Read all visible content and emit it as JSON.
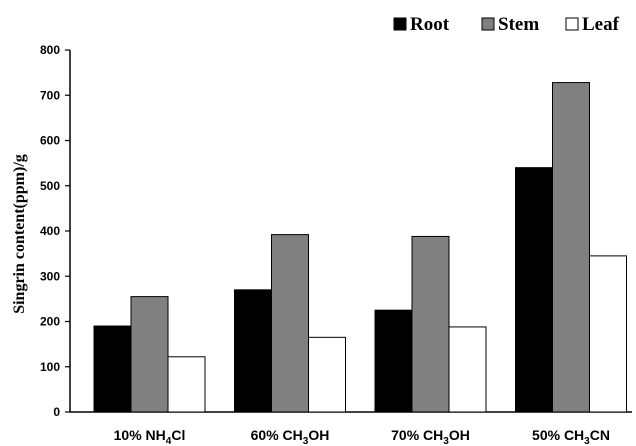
{
  "chart_data": {
    "type": "bar",
    "categories": [
      {
        "text": "10% NH",
        "sub": "4",
        "tail": "Cl"
      },
      {
        "text": "60% CH",
        "sub": "3",
        "tail": "OH"
      },
      {
        "text": "70% CH",
        "sub": "3",
        "tail": "OH"
      },
      {
        "text": "50% CH",
        "sub": "3",
        "tail": "CN"
      }
    ],
    "series": [
      {
        "name": "Root",
        "color": "#000000",
        "values": [
          190,
          270,
          225,
          540
        ]
      },
      {
        "name": "Stem",
        "color": "#808080",
        "values": [
          255,
          392,
          388,
          728
        ]
      },
      {
        "name": "Leaf",
        "color": "#ffffff",
        "values": [
          122,
          165,
          188,
          345
        ]
      }
    ],
    "title": "",
    "xlabel": "",
    "ylabel": "Singrin content(ppm)/g",
    "ylim": [
      0,
      800
    ],
    "yticks": [
      0,
      100,
      200,
      300,
      400,
      500,
      600,
      700,
      800
    ],
    "grid": false,
    "legend": "top-right"
  }
}
